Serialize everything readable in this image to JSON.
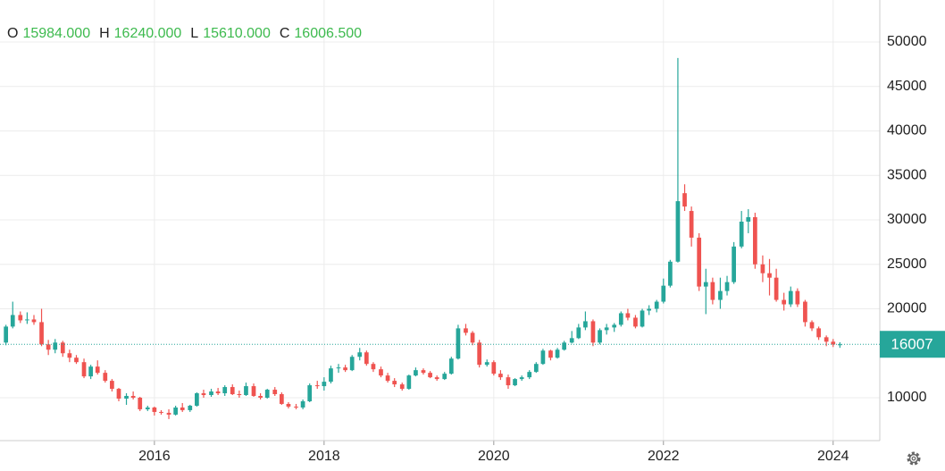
{
  "chart_data": {
    "type": "candlestick",
    "ohlc_keys": [
      "O",
      "H",
      "L",
      "C"
    ],
    "ohlc_labels": [
      "15984.000",
      "16240.000",
      "15610.000",
      "16006.500"
    ],
    "last_label": "16007",
    "header_value_color": "#3dba4e",
    "up_color": "#26a69a",
    "down_color": "#ef5350",
    "xlim": [
      2014.18,
      2024.55
    ],
    "xticks": [
      2016,
      2018,
      2020,
      2022,
      2024
    ],
    "ylim": [
      5176,
      54724
    ],
    "yticks": [
      10000,
      20000,
      25000,
      30000,
      35000,
      40000,
      45000,
      50000
    ],
    "grid": true,
    "x": [
      2014.25,
      2014.33,
      2014.42,
      2014.5,
      2014.58,
      2014.67,
      2014.75,
      2014.83,
      2014.92,
      2015,
      2015.08,
      2015.17,
      2015.25,
      2015.33,
      2015.42,
      2015.5,
      2015.58,
      2015.67,
      2015.75,
      2015.83,
      2015.92,
      2016,
      2016.08,
      2016.17,
      2016.25,
      2016.33,
      2016.42,
      2016.5,
      2016.58,
      2016.67,
      2016.75,
      2016.83,
      2016.92,
      2017,
      2017.08,
      2017.17,
      2017.25,
      2017.33,
      2017.42,
      2017.5,
      2017.58,
      2017.67,
      2017.75,
      2017.83,
      2017.92,
      2018,
      2018.08,
      2018.17,
      2018.25,
      2018.33,
      2018.42,
      2018.5,
      2018.58,
      2018.67,
      2018.75,
      2018.83,
      2018.92,
      2019,
      2019.08,
      2019.17,
      2019.25,
      2019.33,
      2019.42,
      2019.5,
      2019.58,
      2019.67,
      2019.75,
      2019.83,
      2019.92,
      2020,
      2020.08,
      2020.17,
      2020.25,
      2020.33,
      2020.42,
      2020.5,
      2020.58,
      2020.67,
      2020.75,
      2020.83,
      2020.92,
      2021,
      2021.08,
      2021.17,
      2021.25,
      2021.33,
      2021.42,
      2021.5,
      2021.58,
      2021.67,
      2021.75,
      2021.83,
      2021.92,
      2022,
      2022.08,
      2022.17,
      2022.25,
      2022.33,
      2022.42,
      2022.5,
      2022.58,
      2022.67,
      2022.75,
      2022.83,
      2022.92,
      2023,
      2023.08,
      2023.17,
      2023.25,
      2023.33,
      2023.42,
      2023.5,
      2023.58,
      2023.67,
      2023.75,
      2023.83,
      2023.92,
      2024,
      2024.08
    ],
    "ohlc": [
      [
        16200,
        18200,
        15900,
        18000
      ],
      [
        18000,
        20800,
        17800,
        19300
      ],
      [
        19300,
        19700,
        18400,
        18700
      ],
      [
        18700,
        19600,
        18300,
        18800
      ],
      [
        18800,
        19300,
        18200,
        18500
      ],
      [
        18500,
        20000,
        15800,
        16000
      ],
      [
        16000,
        16500,
        14800,
        15400
      ],
      [
        15400,
        16600,
        15000,
        16200
      ],
      [
        16200,
        16400,
        14600,
        15000
      ],
      [
        15000,
        15400,
        14000,
        14500
      ],
      [
        14500,
        14800,
        13800,
        14000
      ],
      [
        14000,
        14400,
        12200,
        12400
      ],
      [
        12400,
        13700,
        12100,
        13500
      ],
      [
        13500,
        14200,
        12600,
        12800
      ],
      [
        12800,
        13100,
        11700,
        11900
      ],
      [
        11900,
        12100,
        10700,
        11000
      ],
      [
        11000,
        11100,
        9600,
        9900
      ],
      [
        9900,
        10500,
        9200,
        10200
      ],
      [
        10200,
        10700,
        9800,
        10000
      ],
      [
        10000,
        10100,
        8500,
        8700
      ],
      [
        8700,
        9100,
        8500,
        8900
      ],
      [
        8900,
        9000,
        8000,
        8400
      ],
      [
        8400,
        8600,
        8100,
        8300
      ],
      [
        8300,
        8700,
        7600,
        8100
      ],
      [
        8100,
        9100,
        8000,
        8900
      ],
      [
        8900,
        9400,
        8400,
        8600
      ],
      [
        8600,
        9200,
        8400,
        9100
      ],
      [
        9100,
        10600,
        9000,
        10500
      ],
      [
        10500,
        10900,
        10000,
        10300
      ],
      [
        10300,
        11000,
        10100,
        10700
      ],
      [
        10700,
        11100,
        10300,
        10500
      ],
      [
        10500,
        11400,
        10200,
        11200
      ],
      [
        11200,
        11500,
        10300,
        10400
      ],
      [
        10400,
        10800,
        10000,
        10300
      ],
      [
        10300,
        11700,
        10200,
        11300
      ],
      [
        11300,
        11600,
        10100,
        10200
      ],
      [
        10200,
        10500,
        9800,
        10000
      ],
      [
        10000,
        11000,
        9900,
        10900
      ],
      [
        10900,
        11200,
        10200,
        10400
      ],
      [
        10400,
        10600,
        9200,
        9300
      ],
      [
        9300,
        9500,
        8800,
        9000
      ],
      [
        9000,
        9300,
        8700,
        8900
      ],
      [
        8900,
        9800,
        8700,
        9600
      ],
      [
        9600,
        11600,
        9500,
        11400
      ],
      [
        11400,
        11900,
        11000,
        11300
      ],
      [
        11300,
        12300,
        10800,
        11800
      ],
      [
        11800,
        13600,
        11600,
        13300
      ],
      [
        13300,
        13800,
        12800,
        13400
      ],
      [
        13400,
        13700,
        12900,
        13100
      ],
      [
        13100,
        14800,
        13000,
        14600
      ],
      [
        14600,
        15600,
        14200,
        15100
      ],
      [
        15100,
        15300,
        13600,
        13800
      ],
      [
        13800,
        14000,
        12900,
        13200
      ],
      [
        13200,
        13500,
        12300,
        12500
      ],
      [
        12500,
        12800,
        11700,
        11900
      ],
      [
        11900,
        12200,
        11200,
        11500
      ],
      [
        11500,
        11700,
        10800,
        11000
      ],
      [
        11000,
        12600,
        10900,
        12500
      ],
      [
        12500,
        13400,
        12400,
        13100
      ],
      [
        13100,
        13300,
        12600,
        12800
      ],
      [
        12800,
        13000,
        12200,
        12300
      ],
      [
        12300,
        12500,
        11900,
        12100
      ],
      [
        12100,
        12900,
        12000,
        12700
      ],
      [
        12700,
        14600,
        12600,
        14400
      ],
      [
        14400,
        18200,
        14300,
        17800
      ],
      [
        17800,
        18300,
        17000,
        17300
      ],
      [
        17300,
        17500,
        15900,
        16200
      ],
      [
        16200,
        16500,
        13400,
        13700
      ],
      [
        13700,
        14300,
        13500,
        14000
      ],
      [
        14000,
        14200,
        12500,
        12700
      ],
      [
        12700,
        13100,
        12000,
        12300
      ],
      [
        12300,
        12600,
        11000,
        11400
      ],
      [
        11400,
        12200,
        11300,
        12100
      ],
      [
        12100,
        12500,
        11900,
        12300
      ],
      [
        12300,
        13100,
        12100,
        12900
      ],
      [
        12900,
        14000,
        12800,
        13800
      ],
      [
        13800,
        15500,
        13700,
        15300
      ],
      [
        15300,
        15400,
        14200,
        14500
      ],
      [
        14500,
        15600,
        14400,
        15400
      ],
      [
        15400,
        16400,
        15300,
        16200
      ],
      [
        16200,
        17500,
        16100,
        16700
      ],
      [
        16700,
        18300,
        16600,
        17900
      ],
      [
        17900,
        19700,
        17600,
        18600
      ],
      [
        18600,
        18800,
        15800,
        16200
      ],
      [
        16200,
        17800,
        16000,
        17600
      ],
      [
        17600,
        18300,
        17100,
        17900
      ],
      [
        17900,
        18400,
        17400,
        18200
      ],
      [
        18200,
        19700,
        18000,
        19500
      ],
      [
        19500,
        20000,
        18700,
        19000
      ],
      [
        19000,
        19300,
        17800,
        18000
      ],
      [
        18000,
        20000,
        17900,
        19800
      ],
      [
        19800,
        20400,
        19300,
        20000
      ],
      [
        20000,
        21000,
        19600,
        20800
      ],
      [
        20800,
        23400,
        20600,
        22600
      ],
      [
        22600,
        25500,
        22400,
        25300
      ],
      [
        25300,
        48200,
        25200,
        32100
      ],
      [
        33000,
        34000,
        31000,
        31500
      ],
      [
        31000,
        31500,
        27000,
        28000
      ],
      [
        28000,
        28500,
        22000,
        22500
      ],
      [
        22500,
        24500,
        19400,
        23000
      ],
      [
        23000,
        23500,
        20500,
        21000
      ],
      [
        21000,
        23500,
        20000,
        22000
      ],
      [
        22000,
        23700,
        21500,
        23000
      ],
      [
        23000,
        27500,
        22800,
        27000
      ],
      [
        27000,
        31000,
        26800,
        29800
      ],
      [
        29800,
        31200,
        28500,
        30300
      ],
      [
        30300,
        30800,
        24500,
        25000
      ],
      [
        25000,
        26000,
        23000,
        24000
      ],
      [
        24000,
        25600,
        21500,
        23500
      ],
      [
        23500,
        24500,
        20800,
        21000
      ],
      [
        21000,
        21800,
        19800,
        20500
      ],
      [
        20500,
        22500,
        20200,
        22000
      ],
      [
        22000,
        22300,
        20200,
        20500
      ],
      [
        20800,
        21000,
        18000,
        18500
      ],
      [
        18500,
        18700,
        17500,
        17800
      ],
      [
        17800,
        18000,
        16500,
        16800
      ],
      [
        16800,
        17000,
        15800,
        16300
      ],
      [
        16300,
        16600,
        15700,
        15984
      ],
      [
        15984,
        16240,
        15610,
        16006.5
      ]
    ]
  }
}
